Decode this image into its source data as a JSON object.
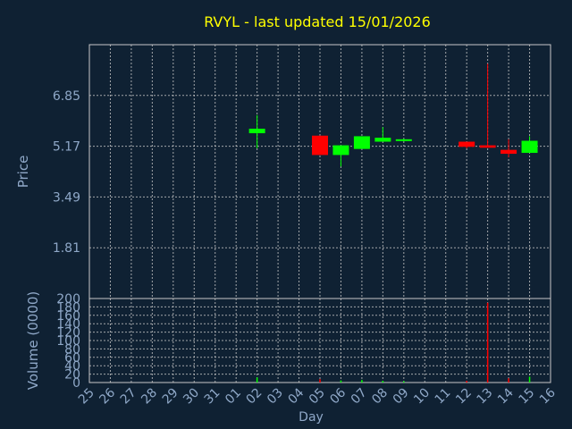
{
  "colors": {
    "background": "#0f2133",
    "plot_border": "#c8c8c8",
    "grid": "#c8c8c8",
    "title": "#ffff00",
    "axis_text": "#8fa8c8",
    "up": "#00ff00",
    "down": "#ff0000"
  },
  "chart_data": [
    {
      "type": "candlestick",
      "title": "RVYL - last updated 15/01/2026",
      "ylabel": "Price",
      "ylim": [
        0.13,
        8.53
      ],
      "yticks": [
        "1.81",
        "3.49",
        "5.17",
        "6.85"
      ],
      "ytick_values": [
        1.81,
        3.49,
        5.17,
        6.85
      ],
      "grid": true,
      "x_categories": [
        "25",
        "26",
        "27",
        "28",
        "29",
        "30",
        "31",
        "01",
        "02",
        "03",
        "04",
        "05",
        "06",
        "07",
        "08",
        "09",
        "10",
        "11",
        "12",
        "13",
        "14",
        "15",
        "16"
      ],
      "candles": [
        {
          "day": "02",
          "open": 5.6,
          "close": 5.75,
          "high": 6.2,
          "low": 5.1
        },
        {
          "day": "05",
          "open": 5.52,
          "close": 4.88,
          "high": 5.52,
          "low": 4.88
        },
        {
          "day": "06",
          "open": 4.88,
          "close": 5.2,
          "high": 5.2,
          "low": 4.5
        },
        {
          "day": "07",
          "open": 5.08,
          "close": 5.5,
          "high": 5.5,
          "low": 5.08
        },
        {
          "day": "08",
          "open": 5.32,
          "close": 5.45,
          "high": 5.8,
          "low": 5.32
        },
        {
          "day": "09",
          "open": 5.35,
          "close": 5.4,
          "high": 5.42,
          "low": 5.33
        },
        {
          "day": "12",
          "open": 5.32,
          "close": 5.15,
          "high": 5.32,
          "low": 5.1
        },
        {
          "day": "13",
          "open": 5.2,
          "close": 5.12,
          "high": 7.9,
          "low": 5.12
        },
        {
          "day": "14",
          "open": 5.05,
          "close": 4.92,
          "high": 5.4,
          "low": 4.8
        },
        {
          "day": "15",
          "open": 4.95,
          "close": 5.35,
          "high": 5.5,
          "low": 4.95
        }
      ]
    },
    {
      "type": "bar",
      "ylabel": "Volume (0000)",
      "xlabel": "Day",
      "ylim": [
        0,
        200
      ],
      "yticks": [
        "0",
        "20",
        "40",
        "60",
        "80",
        "100",
        "120",
        "140",
        "160",
        "180",
        "200"
      ],
      "ytick_values": [
        0,
        20,
        40,
        60,
        80,
        100,
        120,
        140,
        160,
        180,
        200
      ],
      "grid": true,
      "x_categories": [
        "25",
        "26",
        "27",
        "28",
        "29",
        "30",
        "31",
        "01",
        "02",
        "03",
        "04",
        "05",
        "06",
        "07",
        "08",
        "09",
        "10",
        "11",
        "12",
        "13",
        "14",
        "15",
        "16"
      ],
      "bars": [
        {
          "day": "02",
          "value": 12,
          "dir": "up"
        },
        {
          "day": "05",
          "value": 8,
          "dir": "down"
        },
        {
          "day": "06",
          "value": 5,
          "dir": "up"
        },
        {
          "day": "07",
          "value": 6,
          "dir": "up"
        },
        {
          "day": "08",
          "value": 4,
          "dir": "up"
        },
        {
          "day": "09",
          "value": 3,
          "dir": "up"
        },
        {
          "day": "12",
          "value": 4,
          "dir": "down"
        },
        {
          "day": "13",
          "value": 190,
          "dir": "down"
        },
        {
          "day": "14",
          "value": 10,
          "dir": "down"
        },
        {
          "day": "15",
          "value": 14,
          "dir": "up"
        }
      ]
    }
  ]
}
